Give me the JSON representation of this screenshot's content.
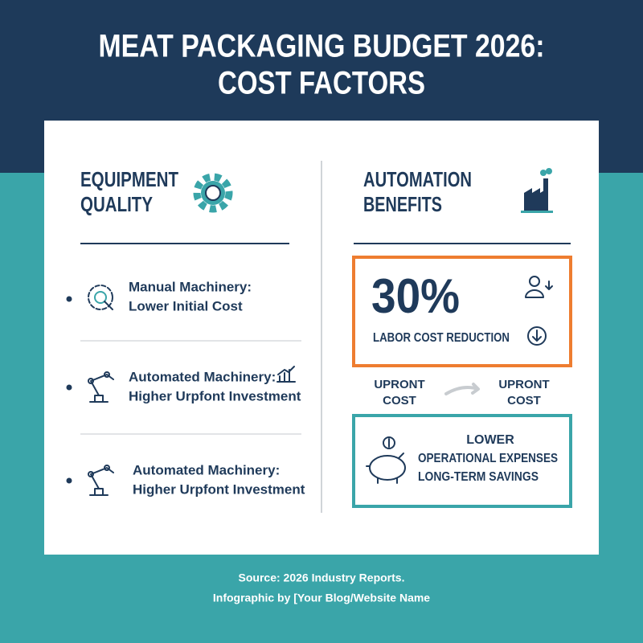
{
  "header": {
    "title_lines": [
      "MEAT PACKAGING BUDGET 2026:",
      "COST FACTORS"
    ]
  },
  "left": {
    "heading_lines": [
      "EQUIPMENT",
      "QUALITY"
    ],
    "items": [
      {
        "lines": [
          "Manual Machinery:",
          "Lower Initial Cost"
        ]
      },
      {
        "lines": [
          "Automated Machinery:",
          "Higher Urpfont Investment"
        ]
      },
      {
        "lines": [
          "Automated Machinery:",
          "Higher Urpfont Investment"
        ]
      }
    ]
  },
  "right": {
    "heading_lines": [
      "AUTOMATION",
      "BENEFITS"
    ],
    "stat": {
      "value": "30%",
      "label": "LABOR COST REDUCTION"
    },
    "comparison": {
      "from_lines": [
        "UPRONT",
        "COST"
      ],
      "to_lines": [
        "UPRONT",
        "COST"
      ]
    },
    "savings": {
      "lines": [
        "LOWER",
        "OPERATIONAL EXPENSES",
        "LONG-TERM SAVINGS"
      ]
    }
  },
  "footer": {
    "source": "Source: 2026 Industry Reports.",
    "credit": "Infographic by [Your Blog/Website Name"
  }
}
